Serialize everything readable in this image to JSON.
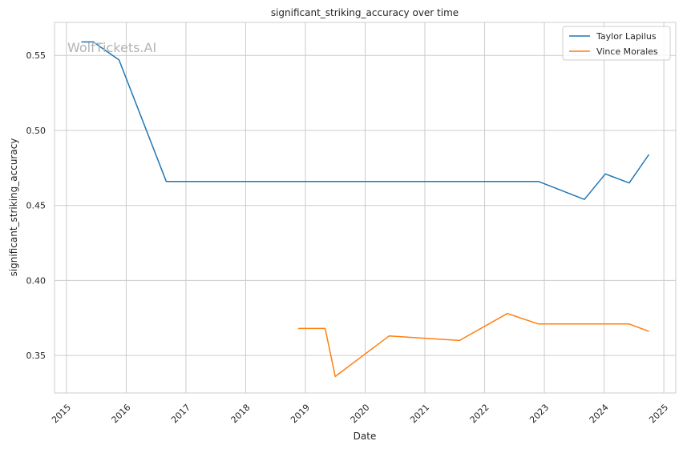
{
  "watermark": "WolfTickets.AI",
  "chart_data": {
    "type": "line",
    "title": "significant_striking_accuracy over time",
    "xlabel": "Date",
    "ylabel": "significant_striking_accuracy",
    "x_ticks": [
      "2015",
      "2016",
      "2017",
      "2018",
      "2019",
      "2020",
      "2021",
      "2022",
      "2023",
      "2024",
      "2025"
    ],
    "y_ticks": [
      "0.35",
      "0.40",
      "0.45",
      "0.50",
      "0.55"
    ],
    "xlim": [
      2014.8,
      2025.2
    ],
    "ylim": [
      0.325,
      0.572
    ],
    "grid": true,
    "legend_position": "top-right",
    "series": [
      {
        "name": "Taylor Lapilus",
        "color": "#1f77b4",
        "points": [
          [
            2015.25,
            0.559
          ],
          [
            2015.45,
            0.559
          ],
          [
            2015.88,
            0.547
          ],
          [
            2016.67,
            0.466
          ],
          [
            2022.9,
            0.466
          ],
          [
            2023.67,
            0.454
          ],
          [
            2024.02,
            0.471
          ],
          [
            2024.42,
            0.465
          ],
          [
            2024.75,
            0.484
          ]
        ]
      },
      {
        "name": "Vince Morales",
        "color": "#ff7f0e",
        "points": [
          [
            2018.88,
            0.368
          ],
          [
            2019.33,
            0.368
          ],
          [
            2019.5,
            0.336
          ],
          [
            2020.4,
            0.363
          ],
          [
            2021.58,
            0.36
          ],
          [
            2022.38,
            0.378
          ],
          [
            2022.9,
            0.371
          ],
          [
            2024.42,
            0.371
          ],
          [
            2024.75,
            0.366
          ]
        ]
      }
    ]
  }
}
